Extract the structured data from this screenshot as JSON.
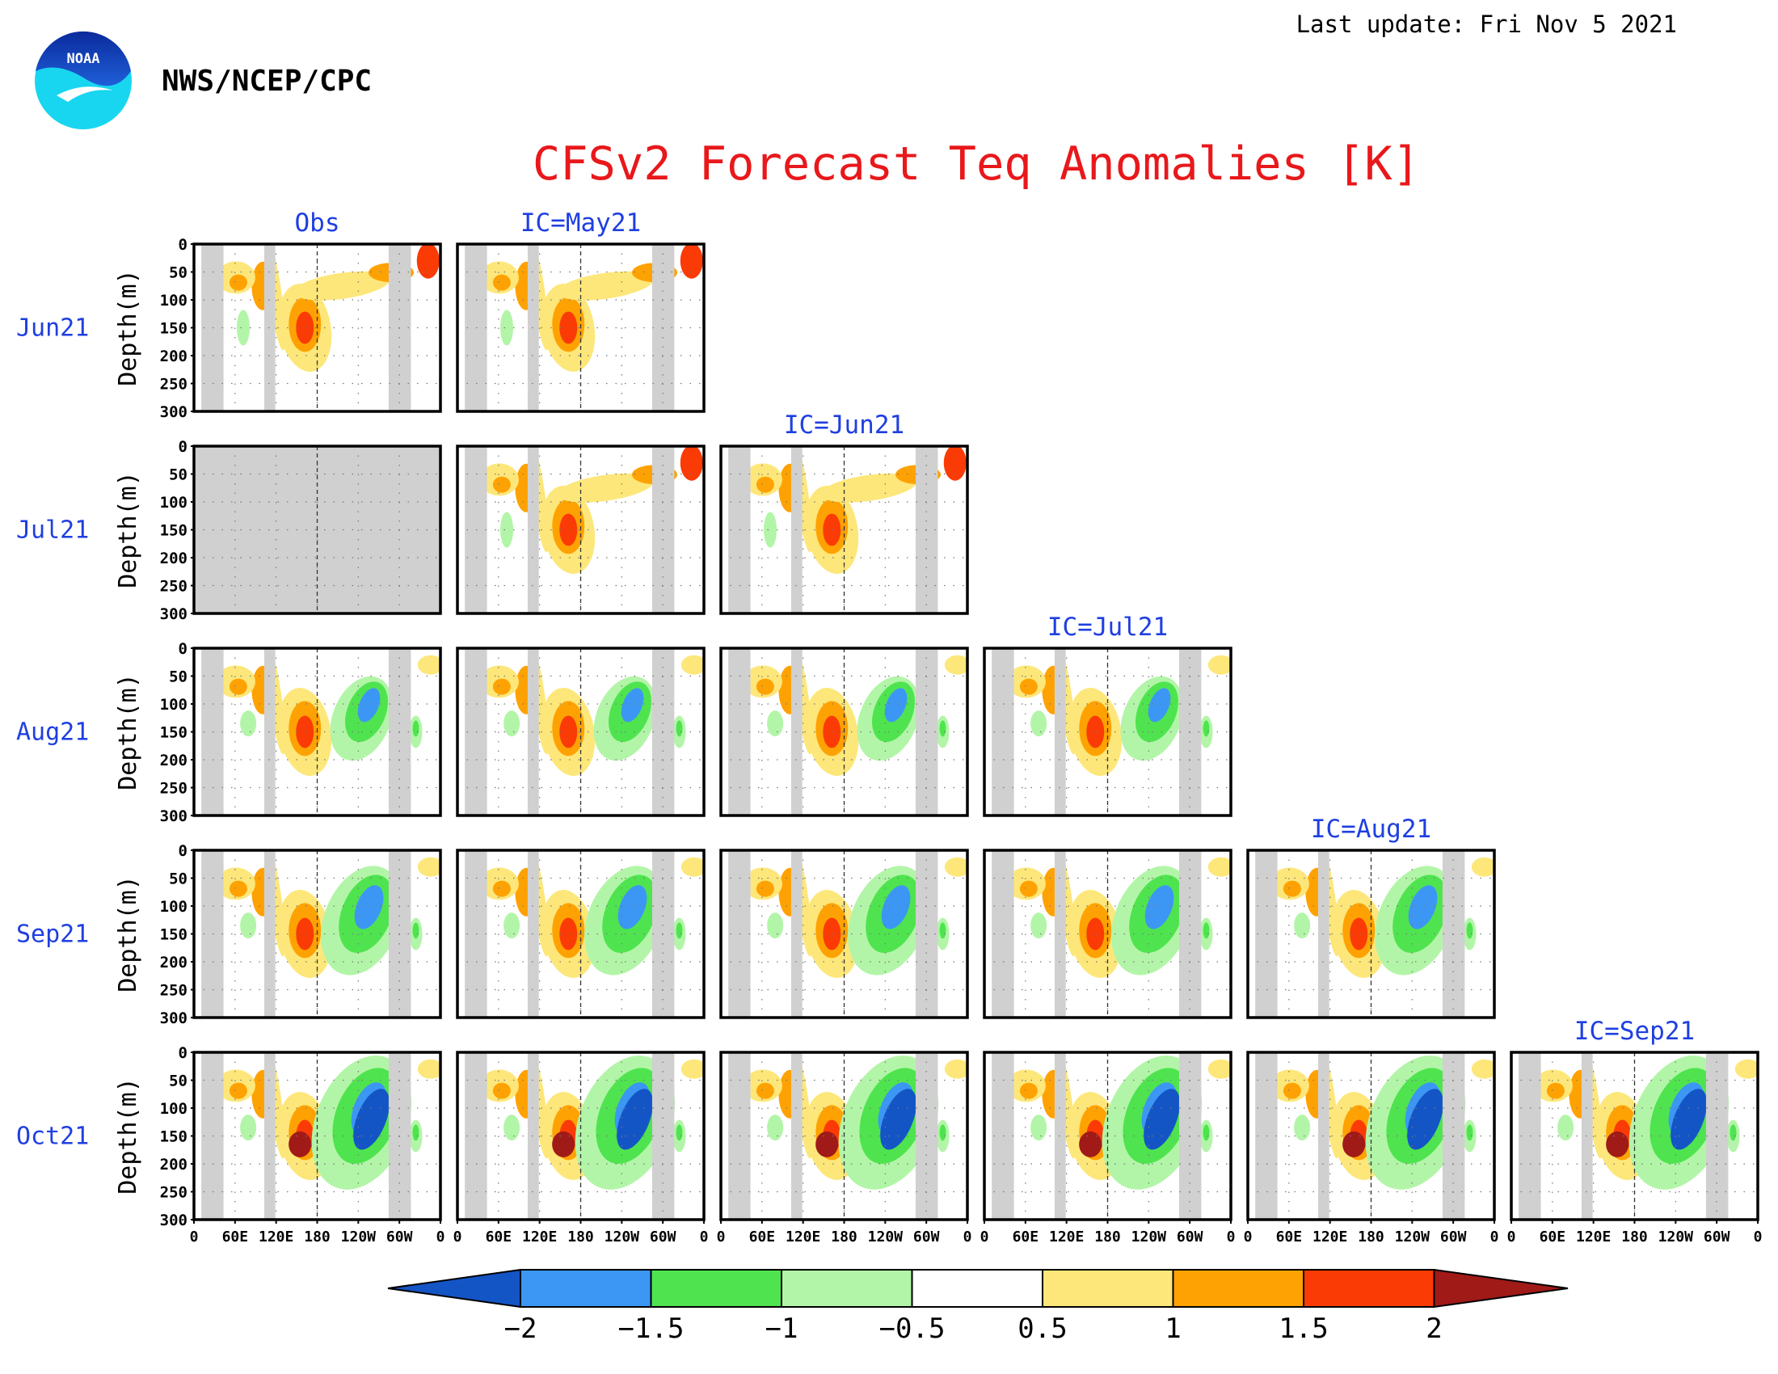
{
  "header": {
    "org": "NWS/NCEP/CPC",
    "logo_text": "NOAA",
    "last_update": "Last update: Fri Nov 5 2021",
    "title": "CFSv2 Forecast Teq Anomalies [K]"
  },
  "colors": {
    "title": "#e8181b",
    "label_blue": "#1f3fe0",
    "missing": "#d0d0d0",
    "levels": [
      "#1455c6",
      "#3c97f4",
      "#4fe44f",
      "#b3f5a8",
      "#ffffff",
      "#fde77a",
      "#fea203",
      "#fb3b05",
      "#a01a18"
    ]
  },
  "chart_data": {
    "type": "heatmap",
    "variable": "Equatorial temperature anomaly (K) vs longitude and depth",
    "ylabel": "Depth(m)",
    "y_ticks": [
      "0",
      "50",
      "100",
      "150",
      "200",
      "250",
      "300"
    ],
    "x_ticks": [
      "0",
      "60E",
      "120E",
      "180",
      "120W",
      "60W",
      "0"
    ],
    "rows": [
      "Jun21",
      "Jul21",
      "Aug21",
      "Sep21",
      "Oct21"
    ],
    "columns": [
      "Obs",
      "IC=May21",
      "IC=Jun21",
      "IC=Jul21",
      "IC=Aug21",
      "IC=Sep21"
    ],
    "colorbar": {
      "ticks": [
        "−2",
        "−1.5",
        "−1",
        "−0.5",
        "0.5",
        "1",
        "1.5",
        "2"
      ],
      "values": [
        -2,
        -1.5,
        -1,
        -0.5,
        0.5,
        1,
        1.5,
        2
      ]
    },
    "panels": [
      {
        "row": 0,
        "col": 0,
        "missing": false
      },
      {
        "row": 0,
        "col": 1,
        "missing": false
      },
      {
        "row": 1,
        "col": 0,
        "missing": true
      },
      {
        "row": 1,
        "col": 1,
        "missing": false
      },
      {
        "row": 1,
        "col": 2,
        "missing": false
      },
      {
        "row": 2,
        "col": 0,
        "missing": false
      },
      {
        "row": 2,
        "col": 1,
        "missing": false
      },
      {
        "row": 2,
        "col": 2,
        "missing": false
      },
      {
        "row": 2,
        "col": 3,
        "missing": false
      },
      {
        "row": 3,
        "col": 0,
        "missing": false
      },
      {
        "row": 3,
        "col": 1,
        "missing": false
      },
      {
        "row": 3,
        "col": 2,
        "missing": false
      },
      {
        "row": 3,
        "col": 3,
        "missing": false
      },
      {
        "row": 3,
        "col": 4,
        "missing": false
      },
      {
        "row": 4,
        "col": 0,
        "missing": false
      },
      {
        "row": 4,
        "col": 1,
        "missing": false
      },
      {
        "row": 4,
        "col": 2,
        "missing": false
      },
      {
        "row": 4,
        "col": 3,
        "missing": false
      },
      {
        "row": 4,
        "col": 4,
        "missing": false
      },
      {
        "row": 4,
        "col": 5,
        "missing": false
      }
    ]
  }
}
